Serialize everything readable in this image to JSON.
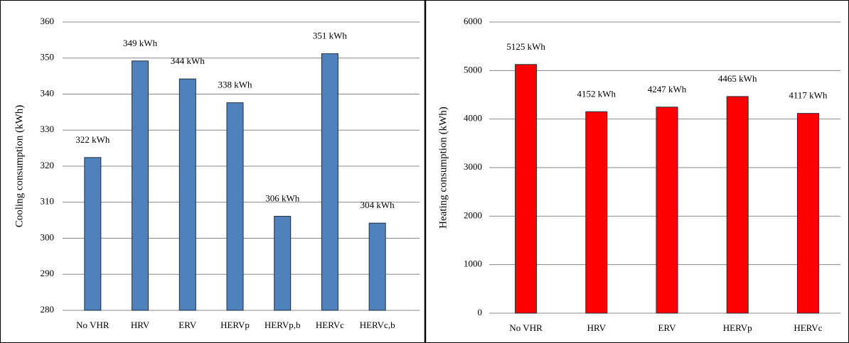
{
  "chart_data": [
    {
      "type": "bar",
      "ylabel": "Cooling consumption (kWh)",
      "categories": [
        "No VHR",
        "HRV",
        "ERV",
        "HERVp",
        "HERVp,b",
        "HERVc",
        "HERVc,b"
      ],
      "values": [
        322.4,
        349.2,
        344.2,
        337.6,
        306.1,
        351.2,
        304.2
      ],
      "value_labels": [
        "322 kWh",
        "349 kWh",
        "344 kWh",
        "338 kWh",
        "306 kWh",
        "351 kWh",
        "304 kWh"
      ],
      "color": "#4f81bd",
      "ylim": [
        280,
        360
      ],
      "yticks": [
        280,
        290,
        300,
        310,
        320,
        330,
        340,
        350,
        360
      ],
      "grid": true
    },
    {
      "type": "bar",
      "ylabel": "Heating consumption (kWh)",
      "categories": [
        "No VHR",
        "HRV",
        "ERV",
        "HERVp",
        "HERVc"
      ],
      "values": [
        5125,
        4152,
        4247,
        4465,
        4117
      ],
      "value_labels": [
        "5125 kWh",
        "4152 kWh",
        "4247 kWh",
        "4465 kWh",
        "4117 kWh"
      ],
      "color": "#ff0000",
      "ylim": [
        0,
        6000
      ],
      "yticks": [
        0,
        1000,
        2000,
        3000,
        4000,
        5000,
        6000
      ],
      "grid": true
    }
  ]
}
